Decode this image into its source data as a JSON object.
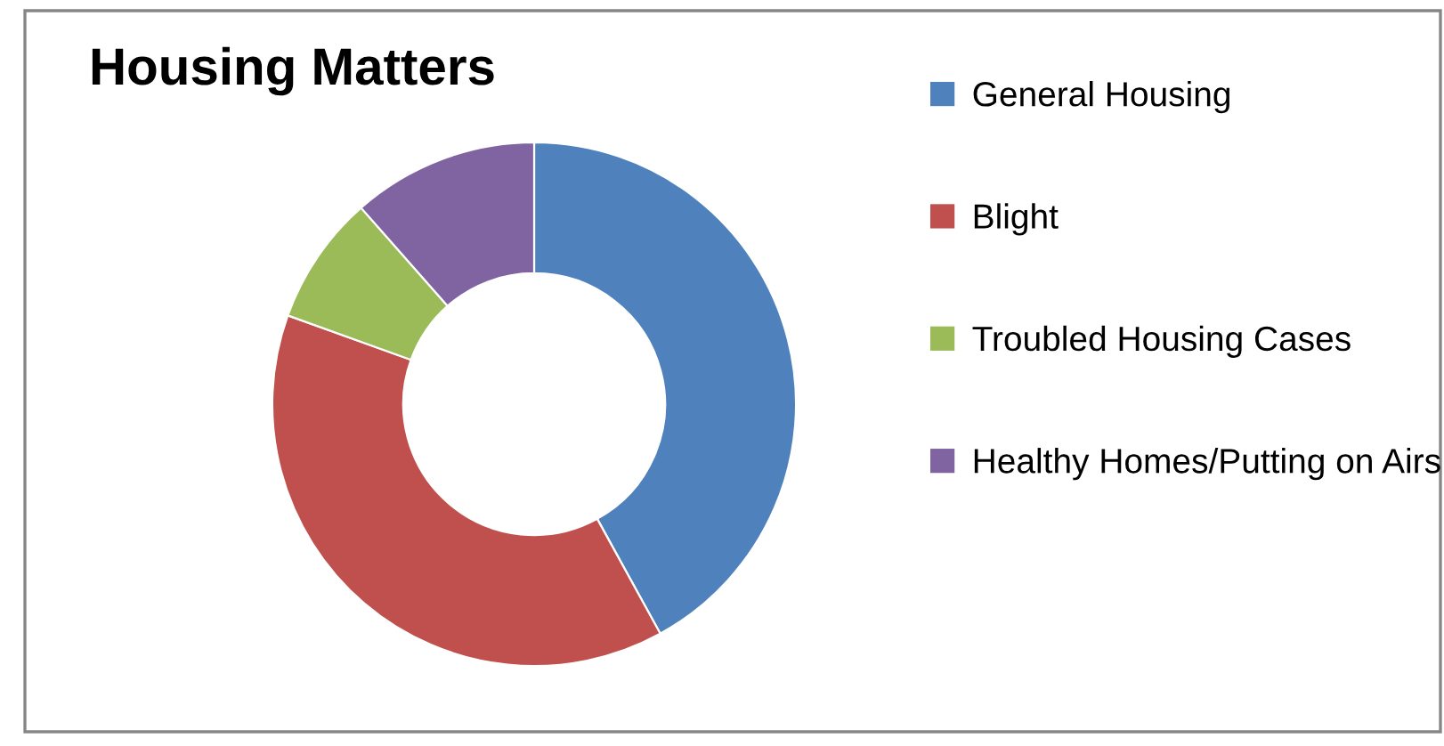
{
  "chart_data": {
    "type": "donut",
    "title": "Housing Matters",
    "categories": [
      "General Housing",
      "Blight",
      "Troubled Housing Cases",
      "Healthy Homes/Putting on Airs"
    ],
    "values": [
      42,
      38.5,
      8,
      11.5
    ],
    "colors": [
      "#4f81bd",
      "#c0504d",
      "#9bbb59",
      "#8064a2"
    ],
    "legend": "right"
  }
}
